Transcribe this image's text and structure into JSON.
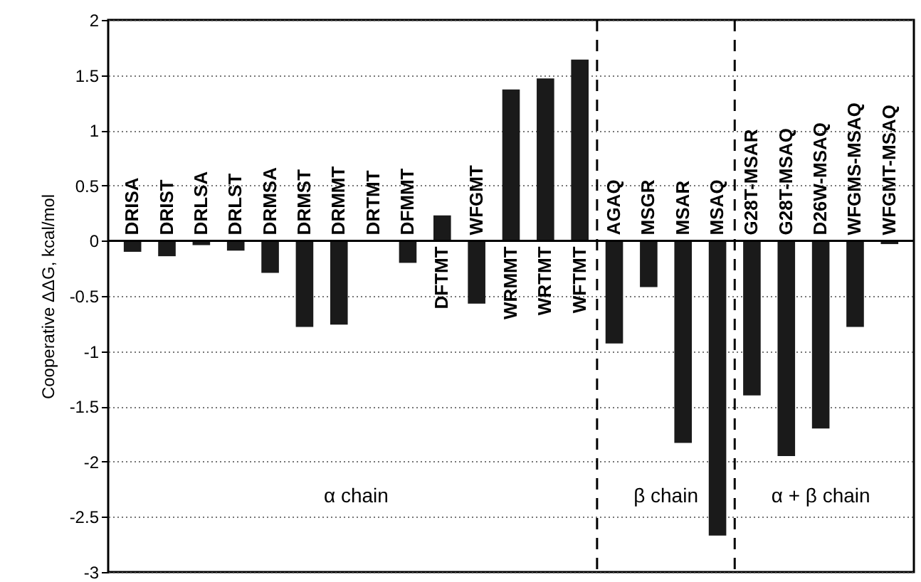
{
  "chart_data": {
    "type": "bar",
    "ylabel": "Cooperative ΔΔG, kcal/mol",
    "categories": [
      "DRISA",
      "DRIST",
      "DRLSA",
      "DRLST",
      "DRMSA",
      "DRMST",
      "DRMMT",
      "DRTMT",
      "DFMMT",
      "DFTMT",
      "WFGMT",
      "WRMMT",
      "WRTMT",
      "WFTMT",
      "AGAQ",
      "MSGR",
      "MSAR",
      "MSAQ",
      "G28T-MSAR",
      "G28T-MSAQ",
      "D26W-MSAQ",
      "WFGMS-MSAQ",
      "WFGMT-MSAQ"
    ],
    "values": [
      -0.1,
      -0.14,
      -0.04,
      -0.09,
      -0.29,
      -0.78,
      -0.76,
      0,
      -0.2,
      0.23,
      -0.57,
      1.37,
      1.47,
      1.64,
      -0.93,
      -0.42,
      -1.83,
      -2.67,
      -1.4,
      -1.95,
      -1.7,
      -0.78,
      -0.03
    ],
    "color": "#1a1a1a",
    "ylim": [
      -3,
      2
    ],
    "yticks": [
      -3,
      -2.5,
      -2,
      -1.5,
      -1,
      -0.5,
      0,
      0.5,
      1,
      1.5,
      2
    ],
    "grid": "y",
    "tick_labels": "y",
    "annotations": [
      "α chain",
      "β chain",
      "α + β chain"
    ]
  }
}
